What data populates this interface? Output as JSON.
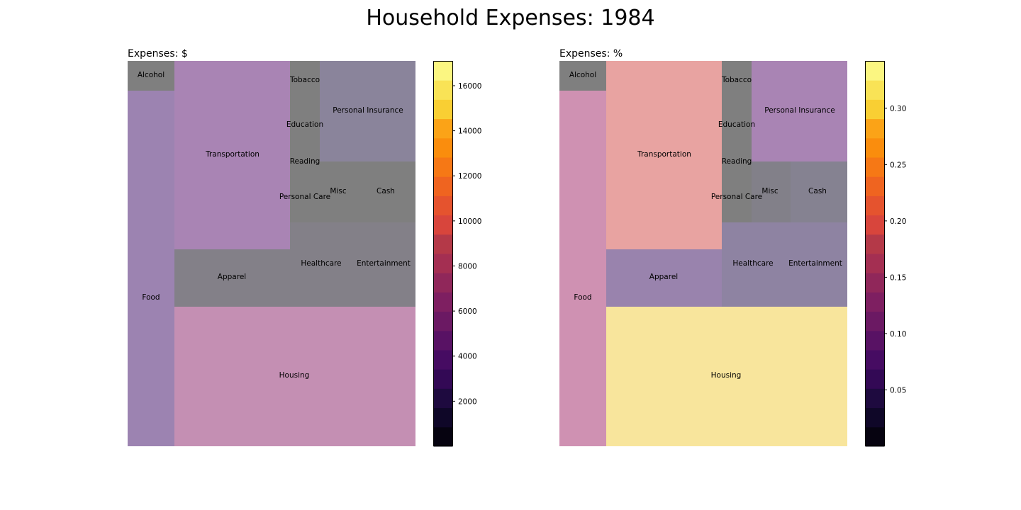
{
  "title": "Household Expenses: 1984",
  "chart_data": [
    {
      "type": "treemap",
      "title": "Expenses: $",
      "colormap": "inferno",
      "colorbar": {
        "range": [
          0,
          17100
        ],
        "ticks": [
          "2000",
          "4000",
          "6000",
          "8000",
          "10000",
          "12000",
          "14000",
          "16000"
        ]
      },
      "tiles": [
        {
          "label": "Alcohol",
          "color": "#7f7f7f"
        },
        {
          "label": "Food",
          "color": "#9c83b1"
        },
        {
          "label": "Transportation",
          "color": "#a984b4"
        },
        {
          "label": "Tobacco",
          "color": "#7f7f7f"
        },
        {
          "label": "Education",
          "color": "#7f7f7f"
        },
        {
          "label": "Reading",
          "color": "#7f7f7f"
        },
        {
          "label": "Personal Care",
          "color": "#7f7f7f"
        },
        {
          "label": "Personal Insurance",
          "color": "#8a849b"
        },
        {
          "label": "Misc",
          "color": "#7f7f7f"
        },
        {
          "label": "Cash",
          "color": "#7f7f7f"
        },
        {
          "label": "Apparel",
          "color": "#838088"
        },
        {
          "label": "Healthcare",
          "color": "#838088"
        },
        {
          "label": "Entertainment",
          "color": "#838088"
        },
        {
          "label": "Housing",
          "color": "#c48fb3"
        }
      ]
    },
    {
      "type": "treemap",
      "title": "Expenses: %",
      "colormap": "inferno",
      "colorbar": {
        "range": [
          0,
          0.342
        ],
        "ticks": [
          "0.05",
          "0.10",
          "0.15",
          "0.20",
          "0.25",
          "0.30"
        ]
      },
      "tiles": [
        {
          "label": "Alcohol",
          "color": "#7f7f7f"
        },
        {
          "label": "Food",
          "color": "#cf91b2"
        },
        {
          "label": "Transportation",
          "color": "#e8a3a1"
        },
        {
          "label": "Tobacco",
          "color": "#7f7f7f"
        },
        {
          "label": "Education",
          "color": "#7f7f7f"
        },
        {
          "label": "Reading",
          "color": "#7f7f7f"
        },
        {
          "label": "Personal Care",
          "color": "#7f7f7f"
        },
        {
          "label": "Personal Insurance",
          "color": "#a984b4"
        },
        {
          "label": "Misc",
          "color": "#828089"
        },
        {
          "label": "Cash",
          "color": "#858291"
        },
        {
          "label": "Apparel",
          "color": "#9983ad"
        },
        {
          "label": "Healthcare",
          "color": "#8e83a2"
        },
        {
          "label": "Entertainment",
          "color": "#8e83a2"
        },
        {
          "label": "Housing",
          "color": "#f8e59c"
        }
      ]
    }
  ]
}
